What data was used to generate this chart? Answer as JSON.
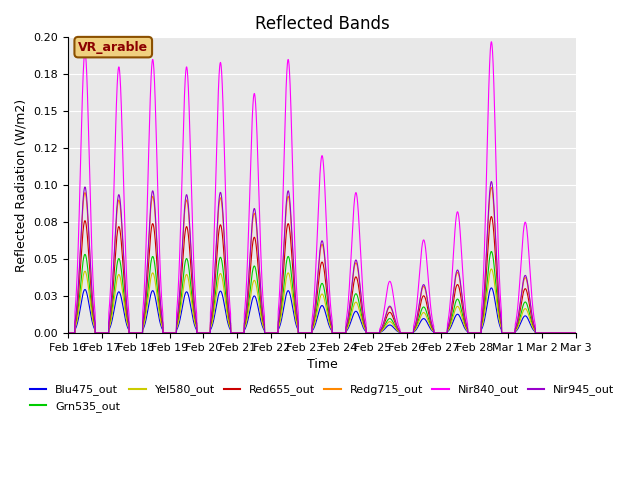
{
  "title": "Reflected Bands",
  "xlabel": "Time",
  "ylabel": "Reflected Radiation (W/m2)",
  "ylim": [
    0,
    0.2
  ],
  "background_color": "#e8e8e8",
  "annotation_text": "VR_arable",
  "series": [
    {
      "name": "Blu475_out",
      "color": "#0000ee"
    },
    {
      "name": "Grn535_out",
      "color": "#00cc00"
    },
    {
      "name": "Yel580_out",
      "color": "#cccc00"
    },
    {
      "name": "Red655_out",
      "color": "#cc0000"
    },
    {
      "name": "Redg715_out",
      "color": "#ff8800"
    },
    {
      "name": "Nir840_out",
      "color": "#ff00ff"
    },
    {
      "name": "Nir945_out",
      "color": "#9900cc"
    }
  ],
  "day_peaks_nir840": [
    0.19,
    0.18,
    0.185,
    0.18,
    0.183,
    0.162,
    0.185,
    0.12,
    0.095,
    0.035,
    0.063,
    0.082,
    0.197,
    0.075,
    0.0
  ],
  "scale_factors": [
    0.155,
    0.28,
    0.22,
    0.4,
    0.5,
    1.0,
    0.52
  ],
  "tick_labels": [
    "Feb 16",
    "Feb 17",
    "Feb 18",
    "Feb 19",
    "Feb 20",
    "Feb 21",
    "Feb 22",
    "Feb 23",
    "Feb 24",
    "Feb 25",
    "Feb 26",
    "Feb 27",
    "Feb 28",
    "Mar 1",
    "Mar 2",
    "Mar 3"
  ]
}
